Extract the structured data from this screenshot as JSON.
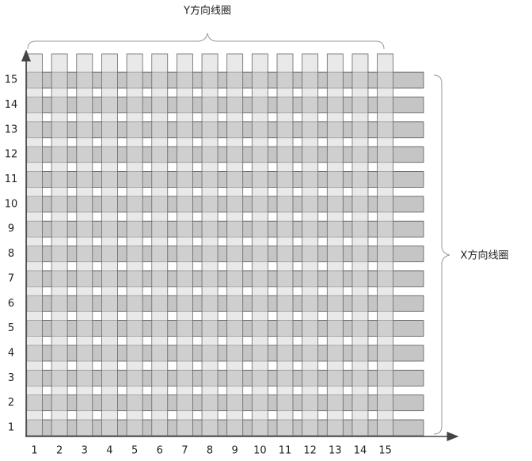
{
  "top_label": "Y方向线圈",
  "right_label": "X方向线圈",
  "x_labels": [
    1,
    2,
    3,
    4,
    5,
    6,
    7,
    8,
    9,
    10,
    11,
    12,
    13,
    14,
    15
  ],
  "y_labels": [
    1,
    2,
    3,
    4,
    5,
    6,
    7,
    8,
    9,
    10,
    11,
    12,
    13,
    14,
    15
  ]
}
